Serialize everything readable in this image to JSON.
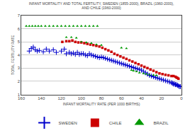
{
  "chart_data": {
    "type": "scatter",
    "title": "INFANT MORTALITY AND TOTAL FERTILITY, SWEDEN (1855-2000), BRAZIL (1960-2000),",
    "subtitle": "AND CHILE (1960-2000)",
    "x_label": "INFANT MORTALITY RATE (PER 1000 BIRTHS)",
    "y_label": "TOTAL FERTILITY RATE",
    "xlim": [
      160,
      0
    ],
    "ylim": [
      1,
      7
    ],
    "xticks": [
      160,
      140,
      120,
      100,
      80,
      60,
      40,
      20,
      0
    ],
    "yticks": [
      1,
      2,
      3,
      4,
      5,
      6,
      7
    ],
    "grid": "y",
    "legend": "bottom",
    "series": [
      {
        "name": "SWEDEN",
        "color": "#0000cc",
        "marker": "plus",
        "x": [
          152,
          150,
          148,
          146,
          144,
          142,
          138,
          135,
          132,
          128,
          125,
          120,
          117,
          115,
          112,
          110,
          108,
          106,
          104,
          102,
          100,
          98,
          96,
          94,
          92,
          90,
          88,
          86,
          84,
          82,
          80,
          78,
          76,
          74,
          72,
          70,
          68,
          66,
          64,
          62,
          60,
          58,
          56,
          54,
          52,
          50,
          48,
          46,
          44,
          42,
          40,
          38,
          36,
          34,
          32,
          30,
          28,
          26,
          24,
          22,
          20,
          18,
          16,
          14,
          12,
          10,
          9,
          8,
          7,
          6,
          5,
          4,
          3,
          2,
          1
        ],
        "values": [
          4.3,
          4.5,
          4.6,
          4.4,
          4.3,
          4.35,
          4.25,
          4.45,
          4.3,
          4.4,
          4.2,
          4.3,
          4.45,
          4.1,
          4.2,
          4.1,
          4.15,
          4.05,
          4.2,
          4.05,
          4.1,
          4.1,
          4.0,
          3.95,
          4.1,
          4.0,
          3.95,
          3.9,
          3.85,
          3.8,
          3.85,
          3.8,
          3.75,
          3.7,
          3.65,
          3.6,
          3.55,
          3.5,
          3.45,
          3.4,
          3.35,
          3.3,
          3.25,
          3.2,
          3.15,
          3.1,
          3.05,
          3.0,
          2.95,
          2.9,
          2.85,
          2.75,
          2.65,
          2.55,
          2.45,
          2.4,
          2.35,
          2.3,
          2.25,
          2.2,
          2.15,
          2.1,
          2.05,
          2.0,
          1.95,
          1.9,
          1.85,
          1.8,
          1.8,
          1.75,
          1.75,
          1.7,
          1.65,
          1.6,
          1.6
        ]
      },
      {
        "name": "CHILE",
        "color": "#cc0000",
        "marker": "square",
        "x": [
          119,
          115,
          112,
          109,
          106,
          103,
          100,
          97,
          94,
          91,
          88,
          85,
          82,
          79,
          76,
          73,
          70,
          67,
          64,
          61,
          58,
          55,
          52,
          49,
          46,
          43,
          40,
          37,
          34,
          31,
          28,
          25,
          22,
          19,
          16,
          13,
          10,
          8,
          6,
          5,
          4,
          3
        ],
        "values": [
          5.0,
          5.05,
          5.05,
          5.1,
          5.0,
          4.95,
          4.95,
          4.9,
          4.85,
          4.8,
          4.75,
          4.7,
          4.65,
          4.55,
          4.45,
          4.35,
          4.25,
          4.1,
          4.0,
          3.9,
          3.8,
          3.7,
          3.6,
          3.5,
          3.4,
          3.3,
          3.2,
          3.1,
          3.0,
          2.9,
          2.8,
          2.7,
          2.6,
          2.55,
          2.5,
          2.45,
          2.4,
          2.4,
          2.35,
          2.3,
          2.25,
          2.2
        ]
      },
      {
        "name": "BRAZIL",
        "color": "#009900",
        "marker": "triangle",
        "x": [
          155,
          152,
          149,
          146,
          143,
          140,
          136,
          132,
          128,
          124,
          120,
          116,
          112,
          108,
          104,
          100,
          96,
          92,
          88,
          84,
          115,
          110,
          105,
          100,
          95,
          90,
          85,
          80,
          60,
          55,
          50,
          48,
          45,
          42,
          38,
          35,
          32,
          28,
          25
        ],
        "values": [
          6.2,
          6.2,
          6.2,
          6.2,
          6.2,
          6.2,
          6.2,
          6.2,
          6.2,
          6.2,
          6.2,
          6.2,
          6.2,
          6.2,
          6.2,
          6.2,
          6.2,
          6.2,
          6.2,
          6.2,
          5.35,
          5.35,
          5.3,
          5.0,
          4.95,
          4.9,
          4.8,
          4.75,
          4.55,
          4.5,
          2.85,
          2.8,
          2.75,
          2.65,
          2.6,
          2.55,
          2.5,
          2.48,
          2.45
        ]
      }
    ]
  }
}
